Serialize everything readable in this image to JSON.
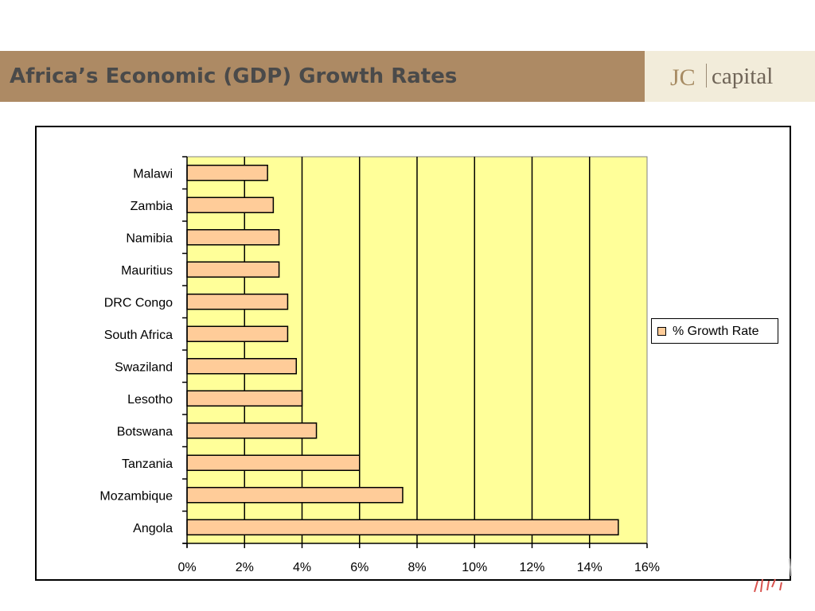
{
  "header": {
    "title": "Africa’s Economic (GDP) Growth Rates",
    "logo_left": "JC",
    "logo_right": "capital"
  },
  "chart_data": {
    "type": "bar",
    "orientation": "horizontal",
    "title": "",
    "xlabel": "",
    "ylabel": "",
    "categories": [
      "Malawi",
      "Zambia",
      "Namibia",
      "Mauritius",
      "DRC Congo",
      "South Africa",
      "Swaziland",
      "Lesotho",
      "Botswana",
      "Tanzania",
      "Mozambique",
      "Angola"
    ],
    "series": [
      {
        "name": "% Growth Rate",
        "values": [
          2.8,
          3.0,
          3.2,
          3.2,
          3.5,
          3.5,
          3.8,
          4.0,
          4.5,
          6.0,
          7.5,
          15.0
        ]
      }
    ],
    "xlim": [
      0,
      16
    ],
    "x_ticks": [
      "0%",
      "2%",
      "4%",
      "6%",
      "8%",
      "10%",
      "12%",
      "14%",
      "16%"
    ],
    "grid": "vertical",
    "legend": "right",
    "colors": {
      "plot_background": "#ffff99",
      "bar_fill": "#ffcc99",
      "bar_stroke": "#000000",
      "gridline": "#000000"
    }
  },
  "colors": {
    "header_bar": "#ad8a64",
    "header_title": "#4a4a4a",
    "logo_panel": "#f2ecda"
  }
}
